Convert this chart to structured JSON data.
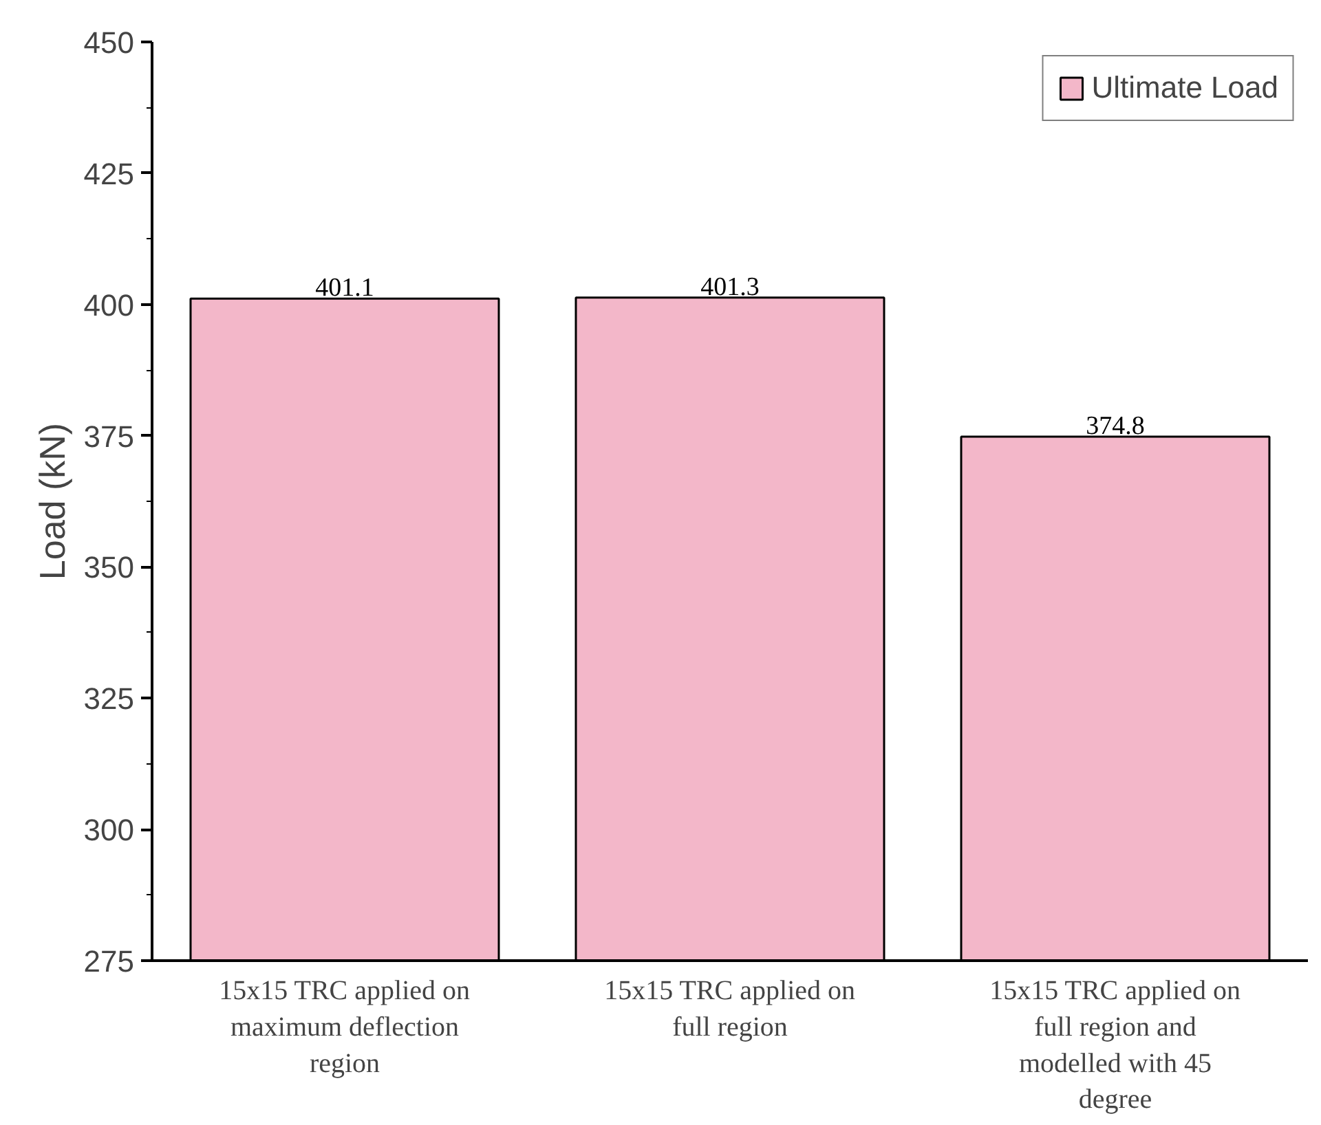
{
  "chart_data": {
    "type": "bar",
    "ylabel": "Load (kN)",
    "categories": [
      "15x15 TRC applied on maximum deflection region",
      "15x15 TRC applied on full region",
      "15x15 TRC applied on full region and modelled with 45 degree"
    ],
    "series": [
      {
        "name": "Ultimate Load",
        "color": "#f3b7c9",
        "values": [
          401.1,
          401.3,
          374.8
        ]
      }
    ],
    "ylim": [
      275,
      450
    ],
    "yticks": [
      275,
      300,
      325,
      350,
      375,
      400,
      425,
      450
    ],
    "data_labels": true,
    "grid": false,
    "legend": "top right"
  }
}
